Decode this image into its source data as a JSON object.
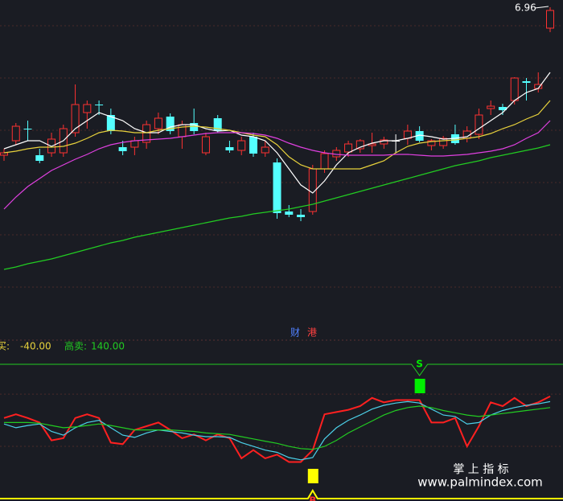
{
  "chart_data": [
    {
      "type": "candlestick",
      "ylim": [
        3.05,
        7.05
      ],
      "yticks": [
        6.73,
        6.08,
        5.43,
        4.78,
        4.13,
        3.48
      ],
      "grid": true,
      "up_color": "#ff3232",
      "down_color": "#54ffff",
      "flat_color": "#ffffff",
      "high_label": 6.96,
      "watermark": [
        "财",
        "港"
      ],
      "open": [
        5.12,
        5.3,
        5.45,
        5.12,
        5.15,
        5.15,
        5.4,
        5.65,
        5.75,
        5.62,
        5.22,
        5.22,
        5.28,
        5.45,
        5.6,
        5.35,
        5.52,
        5.15,
        5.58,
        5.22,
        5.18,
        5.35,
        5.15,
        5.03,
        4.42,
        4.38,
        4.42,
        4.95,
        5.1,
        5.16,
        5.2,
        5.24,
        5.26,
        5.3,
        5.33,
        5.42,
        5.24,
        5.24,
        5.38,
        5.33,
        5.38,
        5.7,
        5.72,
        5.8,
        6.04,
        5.95,
        6.7
      ],
      "high": [
        5.2,
        5.52,
        5.55,
        5.2,
        5.4,
        5.5,
        6.0,
        5.8,
        5.8,
        5.7,
        5.3,
        5.35,
        5.55,
        5.65,
        5.64,
        5.55,
        5.7,
        5.4,
        5.62,
        5.3,
        5.35,
        5.4,
        5.3,
        5.08,
        4.5,
        4.45,
        5.0,
        5.18,
        5.22,
        5.3,
        5.32,
        5.4,
        5.35,
        5.38,
        5.5,
        5.48,
        5.32,
        5.36,
        5.5,
        5.48,
        5.7,
        5.8,
        5.76,
        6.09,
        6.08,
        6.15,
        6.96
      ],
      "low": [
        5.05,
        5.25,
        5.3,
        5.02,
        5.1,
        5.1,
        5.35,
        5.45,
        5.62,
        5.38,
        5.12,
        5.12,
        5.2,
        5.38,
        5.38,
        5.2,
        5.38,
        5.12,
        5.4,
        5.15,
        5.12,
        5.1,
        5.1,
        4.33,
        4.35,
        4.3,
        4.38,
        4.9,
        5.05,
        5.1,
        5.15,
        5.15,
        5.2,
        5.15,
        5.25,
        5.28,
        5.18,
        5.2,
        5.25,
        5.28,
        5.32,
        5.62,
        5.62,
        5.75,
        5.8,
        5.9,
        6.65
      ],
      "close": [
        5.15,
        5.48,
        5.44,
        5.05,
        5.32,
        5.45,
        5.75,
        5.75,
        5.74,
        5.42,
        5.17,
        5.3,
        5.5,
        5.58,
        5.42,
        5.5,
        5.42,
        5.35,
        5.42,
        5.18,
        5.3,
        5.14,
        5.22,
        4.4,
        4.38,
        4.35,
        4.95,
        5.14,
        5.18,
        5.26,
        5.3,
        5.26,
        5.31,
        5.3,
        5.42,
        5.3,
        5.3,
        5.33,
        5.27,
        5.42,
        5.62,
        5.73,
        5.68,
        6.08,
        6.02,
        6.0,
        6.92
      ],
      "series": [
        {
          "color": "#ffffff",
          "values": [
            5.2,
            5.25,
            5.3,
            5.3,
            5.23,
            5.3,
            5.45,
            5.55,
            5.65,
            5.6,
            5.55,
            5.45,
            5.4,
            5.4,
            5.47,
            5.5,
            5.5,
            5.45,
            5.42,
            5.43,
            5.37,
            5.35,
            5.3,
            5.15,
            4.95,
            4.75,
            4.65,
            4.8,
            5.0,
            5.15,
            5.22,
            5.27,
            5.3,
            5.3,
            5.33,
            5.37,
            5.35,
            5.32,
            5.33,
            5.35,
            5.45,
            5.55,
            5.65,
            5.8,
            5.9,
            5.95,
            6.15
          ]
        },
        {
          "color": "#e8d23c",
          "values": [
            5.15,
            5.17,
            5.2,
            5.22,
            5.22,
            5.23,
            5.27,
            5.33,
            5.4,
            5.43,
            5.42,
            5.4,
            5.4,
            5.43,
            5.45,
            5.47,
            5.48,
            5.47,
            5.45,
            5.43,
            5.4,
            5.37,
            5.35,
            5.25,
            5.1,
            5.0,
            4.95,
            4.95,
            4.95,
            4.95,
            4.95,
            5.0,
            5.05,
            5.15,
            5.23,
            5.27,
            5.29,
            5.3,
            5.31,
            5.33,
            5.35,
            5.39,
            5.45,
            5.5,
            5.57,
            5.63,
            5.8
          ]
        },
        {
          "color": "#e040e0",
          "values": [
            4.45,
            4.6,
            4.73,
            4.83,
            4.93,
            5.0,
            5.07,
            5.13,
            5.2,
            5.25,
            5.28,
            5.3,
            5.31,
            5.32,
            5.33,
            5.35,
            5.37,
            5.39,
            5.4,
            5.4,
            5.4,
            5.39,
            5.37,
            5.33,
            5.27,
            5.22,
            5.18,
            5.15,
            5.13,
            5.12,
            5.12,
            5.12,
            5.12,
            5.13,
            5.13,
            5.12,
            5.11,
            5.11,
            5.12,
            5.13,
            5.15,
            5.17,
            5.2,
            5.25,
            5.33,
            5.4,
            5.55
          ]
        },
        {
          "color": "#22cc22",
          "values": [
            3.7,
            3.73,
            3.77,
            3.8,
            3.83,
            3.87,
            3.91,
            3.95,
            3.99,
            4.03,
            4.06,
            4.1,
            4.13,
            4.16,
            4.19,
            4.22,
            4.25,
            4.28,
            4.31,
            4.34,
            4.36,
            4.39,
            4.41,
            4.43,
            4.45,
            4.48,
            4.51,
            4.55,
            4.59,
            4.63,
            4.67,
            4.71,
            4.75,
            4.79,
            4.83,
            4.87,
            4.91,
            4.95,
            4.99,
            5.02,
            5.05,
            5.09,
            5.12,
            5.15,
            5.18,
            5.21,
            5.25
          ]
        }
      ]
    },
    {
      "type": "line",
      "ylim": [
        -40,
        140
      ],
      "yticks": [
        30,
        100
      ],
      "grid": true,
      "buy_label": "买:",
      "buy_level": {
        "value": -40,
        "label": "-40.00"
      },
      "buy_color": "#ffff00",
      "sell_label": "高卖:",
      "sell_level": {
        "value": 140,
        "label": "140.00"
      },
      "sell_color": "#22cc22",
      "signals": [
        {
          "label": "S",
          "index": 35,
          "color": "#00ee00"
        },
        {
          "label": "B",
          "index": 26,
          "color": "#ffff00"
        }
      ],
      "series": [
        {
          "color": "#ff2020",
          "values": [
            68,
            73,
            68,
            62,
            38,
            41,
            68,
            73,
            68,
            35,
            33,
            52,
            57,
            62,
            52,
            41,
            46,
            38,
            46,
            41,
            14,
            25,
            14,
            19,
            9,
            9,
            25,
            73,
            76,
            79,
            84,
            95,
            89,
            92,
            92,
            92,
            62,
            62,
            68,
            30,
            57,
            89,
            84,
            95,
            84,
            89,
            97
          ]
        },
        {
          "color": "#4cd0e8",
          "values": [
            60,
            55,
            58,
            60,
            50,
            45,
            55,
            62,
            65,
            55,
            45,
            42,
            48,
            52,
            50,
            48,
            45,
            43,
            43,
            42,
            35,
            30,
            25,
            22,
            15,
            12,
            15,
            40,
            55,
            65,
            72,
            80,
            85,
            88,
            90,
            88,
            80,
            72,
            70,
            60,
            62,
            72,
            78,
            82,
            85,
            87,
            90
          ]
        },
        {
          "color": "#22cc22",
          "values": [
            62,
            62,
            62,
            61,
            58,
            55,
            56,
            58,
            60,
            58,
            55,
            52,
            52,
            52,
            52,
            51,
            50,
            48,
            47,
            46,
            43,
            40,
            37,
            34,
            30,
            27,
            26,
            30,
            38,
            48,
            56,
            64,
            72,
            78,
            82,
            84,
            82,
            78,
            75,
            72,
            70,
            72,
            74,
            76,
            78,
            80,
            82
          ]
        }
      ]
    }
  ],
  "footer": {
    "brand": "掌 上 指 标",
    "url": "www.palmindex.com"
  }
}
